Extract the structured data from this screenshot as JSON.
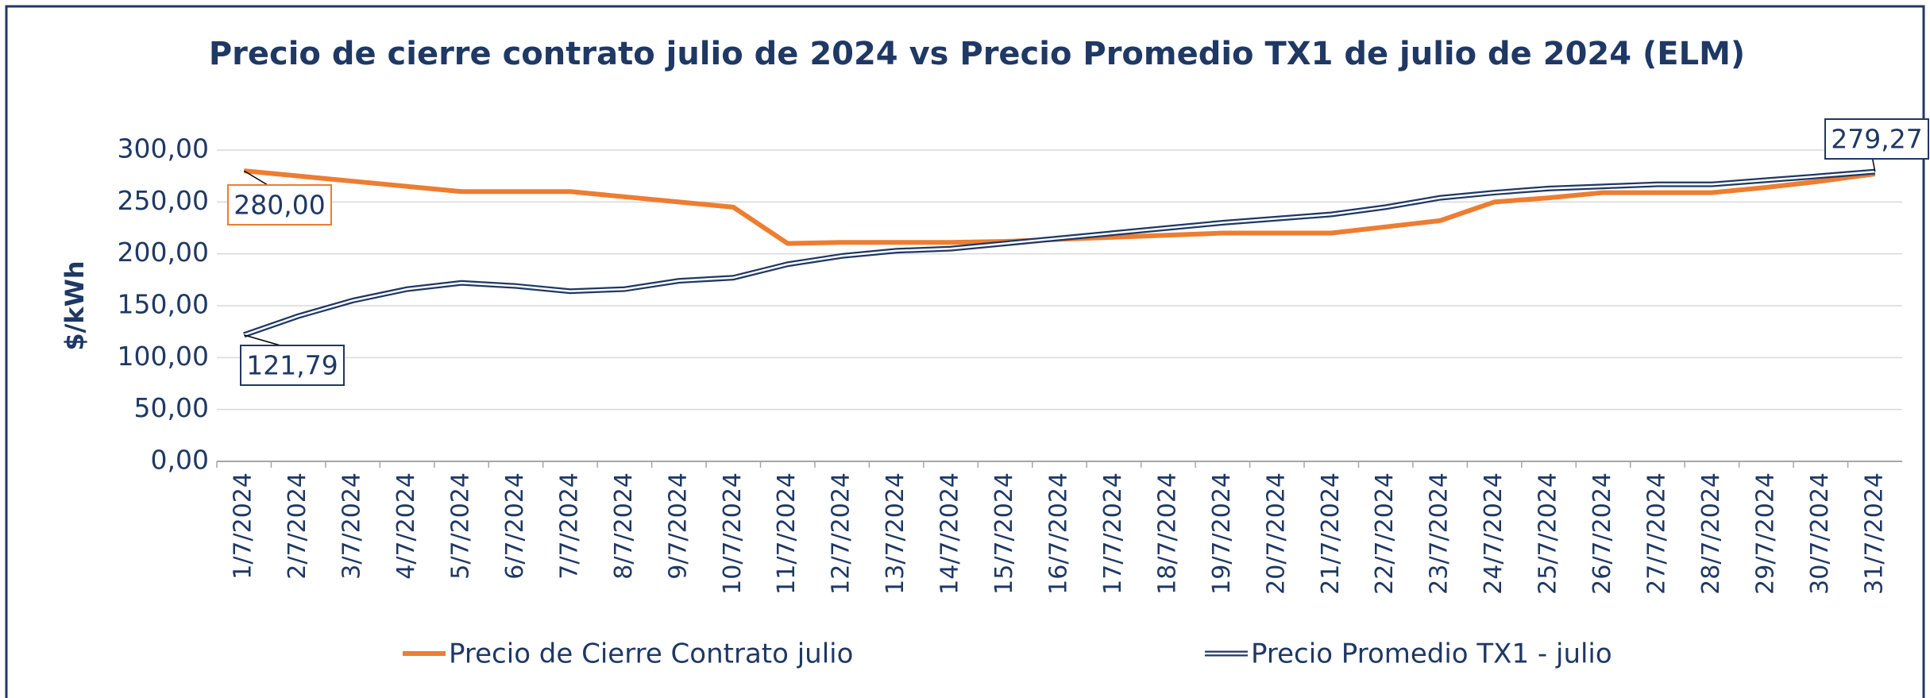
{
  "chart_data": {
    "type": "line",
    "title": "Precio de cierre contrato julio de 2024 vs Precio Promedio TX1 de julio de 2024 (ELM)",
    "y_label": "$/kWh",
    "categories": [
      "1/7/2024",
      "2/7/2024",
      "3/7/2024",
      "4/7/2024",
      "5/7/2024",
      "6/7/2024",
      "7/7/2024",
      "8/7/2024",
      "9/7/2024",
      "10/7/2024",
      "11/7/2024",
      "12/7/2024",
      "13/7/2024",
      "14/7/2024",
      "15/7/2024",
      "16/7/2024",
      "17/7/2024",
      "18/7/2024",
      "19/7/2024",
      "20/7/2024",
      "21/7/2024",
      "22/7/2024",
      "23/7/2024",
      "24/7/2024",
      "25/7/2024",
      "26/7/2024",
      "27/7/2024",
      "28/7/2024",
      "29/7/2024",
      "30/7/2024",
      "31/7/2024"
    ],
    "series": [
      {
        "name": "Precio de Cierre Contrato julio",
        "color": "#ed7d31",
        "values": [
          280.0,
          275,
          270,
          265,
          260,
          260,
          260,
          255,
          250,
          245,
          210,
          211,
          211,
          211,
          212,
          214,
          216,
          218,
          220,
          220,
          220,
          226,
          232,
          250,
          254,
          259,
          259,
          259,
          264,
          270,
          277
        ],
        "value_labels": {
          "0": "280,00"
        }
      },
      {
        "name": "Precio Promedio TX1 - julio",
        "color": "#1f3864",
        "values": [
          121.79,
          140,
          155,
          166,
          172,
          169,
          164,
          166,
          174,
          177,
          190,
          198,
          203,
          205,
          210,
          215,
          220,
          225,
          230,
          234,
          238,
          245,
          254,
          259,
          263,
          265,
          267,
          267,
          271,
          275,
          279.27
        ],
        "value_labels": {
          "0": "121,79",
          "30": "279,27"
        }
      }
    ],
    "ylim": [
      0,
      300
    ],
    "yticks": [
      {
        "value": 0,
        "label": "0,00"
      },
      {
        "value": 50,
        "label": "50,00"
      },
      {
        "value": 100,
        "label": "100,00"
      },
      {
        "value": 150,
        "label": "150,00"
      },
      {
        "value": 200,
        "label": "200,00"
      },
      {
        "value": 250,
        "label": "250,00"
      },
      {
        "value": 300,
        "label": "300,00"
      }
    ],
    "grid": true,
    "legend": "bottom"
  }
}
